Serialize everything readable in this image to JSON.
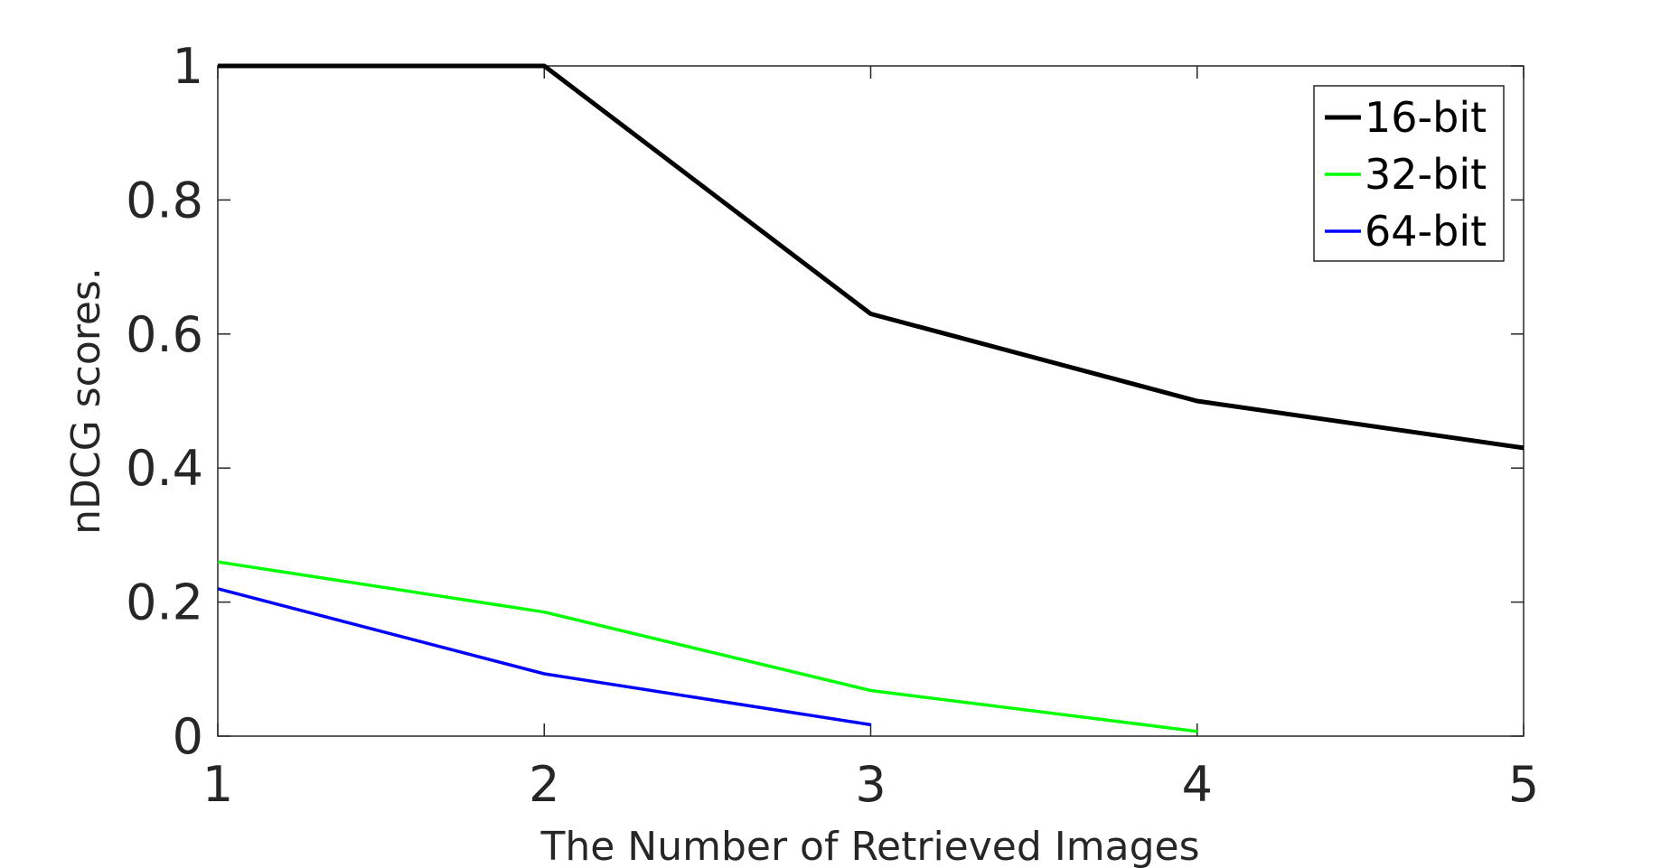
{
  "chart_data": {
    "type": "line",
    "title": "",
    "xlabel": "The Number of Retrieved Images",
    "ylabel": "nDCG scores.",
    "xlim": [
      1,
      5
    ],
    "ylim": [
      0,
      1
    ],
    "xticks": [
      1,
      2,
      3,
      4,
      5
    ],
    "yticks": [
      0,
      0.2,
      0.4,
      0.6,
      0.8,
      1
    ],
    "xtick_labels": [
      "1",
      "2",
      "3",
      "4",
      "5"
    ],
    "ytick_labels": [
      "0",
      "0.2",
      "0.4",
      "0.6",
      "0.8",
      "1"
    ],
    "grid": false,
    "legend_position": "top-right",
    "series": [
      {
        "name": "16-bit",
        "color": "#000000",
        "x": [
          1,
          2,
          3,
          4,
          5
        ],
        "y": [
          1.0,
          1.0,
          0.63,
          0.5,
          0.43
        ]
      },
      {
        "name": "32-bit",
        "color": "#00ff00",
        "x": [
          1,
          2,
          3,
          4
        ],
        "y": [
          0.26,
          0.185,
          0.068,
          0.007
        ]
      },
      {
        "name": "64-bit",
        "color": "#0000ff",
        "x": [
          1,
          2,
          3
        ],
        "y": [
          0.22,
          0.093,
          0.017
        ]
      }
    ]
  }
}
